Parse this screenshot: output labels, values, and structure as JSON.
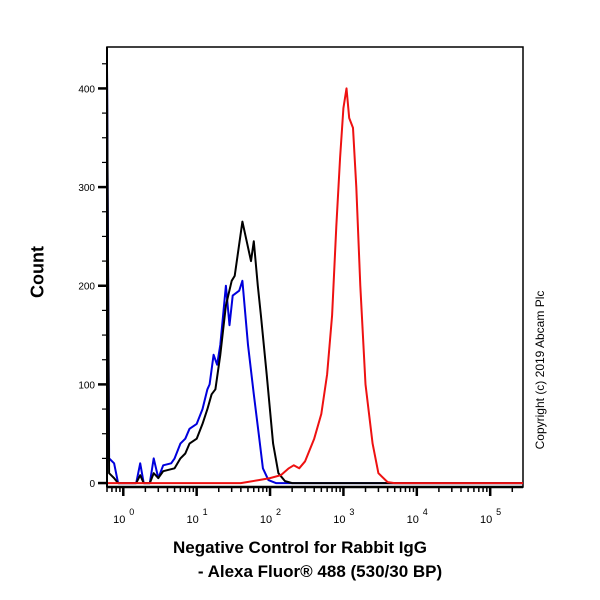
{
  "chart_data": {
    "type": "line",
    "xlabel_line1": "Negative Control for Rabbit IgG",
    "xlabel_line2": "- Alexa Fluor® 488 (530/30 BP)",
    "ylabel": "Count",
    "x_scale": "log",
    "xlim": [
      0.6,
      280000
    ],
    "ylim": [
      -4,
      442
    ],
    "x_ticks": [
      {
        "base": "10",
        "exp": "0",
        "value": 1
      },
      {
        "base": "10",
        "exp": "1",
        "value": 10
      },
      {
        "base": "10",
        "exp": "2",
        "value": 100
      },
      {
        "base": "10",
        "exp": "3",
        "value": 1000
      },
      {
        "base": "10",
        "exp": "4",
        "value": 10000
      },
      {
        "base": "10",
        "exp": "5",
        "value": 100000
      }
    ],
    "y_ticks": [
      0,
      100,
      200,
      300,
      400
    ],
    "grid": false,
    "copyright": "Copyright (c) 2019 Abcam Plc",
    "series": [
      {
        "color": "#0000dd",
        "points": [
          [
            0.6,
            420
          ],
          [
            0.64,
            25
          ],
          [
            0.75,
            20
          ],
          [
            0.85,
            0
          ],
          [
            1.5,
            0
          ],
          [
            1.7,
            20
          ],
          [
            1.9,
            0
          ],
          [
            2.3,
            0
          ],
          [
            2.6,
            25
          ],
          [
            3,
            5
          ],
          [
            3.5,
            18
          ],
          [
            4.5,
            20
          ],
          [
            5,
            25
          ],
          [
            6,
            40
          ],
          [
            7,
            45
          ],
          [
            8,
            55
          ],
          [
            10,
            60
          ],
          [
            12,
            75
          ],
          [
            14,
            95
          ],
          [
            15,
            100
          ],
          [
            17,
            130
          ],
          [
            19,
            120
          ],
          [
            21,
            140
          ],
          [
            25,
            200
          ],
          [
            28,
            160
          ],
          [
            31,
            190
          ],
          [
            38,
            195
          ],
          [
            42,
            205
          ],
          [
            50,
            140
          ],
          [
            60,
            90
          ],
          [
            70,
            50
          ],
          [
            80,
            15
          ],
          [
            95,
            3
          ],
          [
            120,
            0
          ],
          [
            280000,
            0
          ]
        ]
      },
      {
        "color": "#000000",
        "points": [
          [
            0.6,
            420
          ],
          [
            0.64,
            10
          ],
          [
            0.75,
            5
          ],
          [
            0.85,
            0
          ],
          [
            1.5,
            0
          ],
          [
            1.7,
            8
          ],
          [
            1.9,
            0
          ],
          [
            2.3,
            0
          ],
          [
            2.6,
            10
          ],
          [
            3,
            5
          ],
          [
            3.5,
            12
          ],
          [
            5,
            15
          ],
          [
            6,
            25
          ],
          [
            7,
            30
          ],
          [
            8,
            40
          ],
          [
            10,
            45
          ],
          [
            12,
            60
          ],
          [
            14,
            75
          ],
          [
            16,
            90
          ],
          [
            18,
            95
          ],
          [
            21,
            130
          ],
          [
            25,
            180
          ],
          [
            30,
            205
          ],
          [
            33,
            210
          ],
          [
            42,
            265
          ],
          [
            48,
            245
          ],
          [
            55,
            225
          ],
          [
            60,
            245
          ],
          [
            68,
            200
          ],
          [
            75,
            170
          ],
          [
            90,
            110
          ],
          [
            110,
            40
          ],
          [
            130,
            10
          ],
          [
            160,
            2
          ],
          [
            200,
            0
          ],
          [
            280000,
            0
          ]
        ]
      },
      {
        "color": "#ee1111",
        "points": [
          [
            0.6,
            0
          ],
          [
            40,
            0
          ],
          [
            70,
            3
          ],
          [
            100,
            5
          ],
          [
            140,
            8
          ],
          [
            180,
            15
          ],
          [
            210,
            18
          ],
          [
            250,
            15
          ],
          [
            300,
            22
          ],
          [
            400,
            45
          ],
          [
            500,
            70
          ],
          [
            600,
            110
          ],
          [
            700,
            170
          ],
          [
            800,
            260
          ],
          [
            900,
            330
          ],
          [
            1000,
            380
          ],
          [
            1100,
            400
          ],
          [
            1200,
            370
          ],
          [
            1350,
            360
          ],
          [
            1500,
            300
          ],
          [
            1700,
            200
          ],
          [
            2000,
            100
          ],
          [
            2500,
            40
          ],
          [
            3000,
            10
          ],
          [
            4000,
            1
          ],
          [
            5000,
            0
          ],
          [
            280000,
            0
          ]
        ]
      }
    ]
  }
}
